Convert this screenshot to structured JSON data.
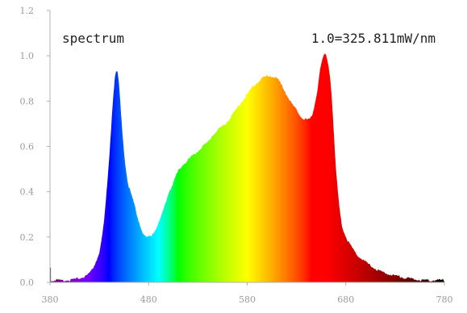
{
  "chart_data": {
    "type": "area",
    "title": "",
    "xlabel": "",
    "ylabel": "",
    "xlim": [
      380,
      780
    ],
    "ylim": [
      0,
      1.2
    ],
    "x_ticks": [
      380,
      480,
      580,
      680,
      780
    ],
    "y_ticks": [
      0.0,
      0.2,
      0.4,
      0.6,
      0.8,
      1.0,
      1.2
    ],
    "x_tick_labels": [
      "380",
      "480",
      "580",
      "680",
      "780"
    ],
    "y_tick_labels": [
      "0.0",
      "0.2",
      "0.4",
      "0.6",
      "0.8",
      "1.0",
      "1.2"
    ],
    "grid": false,
    "fill": "wavelength-rainbow",
    "annotations": {
      "left": "spectrum",
      "right": "1.0=325.811mW/nm"
    },
    "series": [
      {
        "x": [
          380,
          390,
          400,
          410,
          420,
          430,
          435,
          440,
          445,
          448,
          450,
          452,
          455,
          458,
          460,
          465,
          470,
          475,
          480,
          485,
          490,
          495,
          500,
          505,
          510,
          515,
          520,
          525,
          530,
          535,
          540,
          545,
          550,
          555,
          560,
          565,
          570,
          575,
          580,
          585,
          590,
          595,
          600,
          605,
          610,
          615,
          620,
          625,
          630,
          635,
          640,
          645,
          650,
          655,
          660,
          665,
          670,
          675,
          680,
          690,
          700,
          710,
          720,
          740,
          760,
          780
        ],
        "values": [
          0.01,
          0.01,
          0.01,
          0.02,
          0.04,
          0.13,
          0.28,
          0.55,
          0.86,
          0.93,
          0.87,
          0.74,
          0.58,
          0.47,
          0.42,
          0.35,
          0.27,
          0.21,
          0.2,
          0.22,
          0.26,
          0.32,
          0.39,
          0.44,
          0.49,
          0.52,
          0.54,
          0.56,
          0.58,
          0.6,
          0.62,
          0.65,
          0.67,
          0.69,
          0.71,
          0.74,
          0.77,
          0.8,
          0.83,
          0.86,
          0.88,
          0.9,
          0.91,
          0.91,
          0.9,
          0.87,
          0.83,
          0.79,
          0.76,
          0.73,
          0.72,
          0.73,
          0.82,
          0.96,
          1.0,
          0.86,
          0.5,
          0.28,
          0.2,
          0.13,
          0.09,
          0.06,
          0.04,
          0.02,
          0.01,
          0.01
        ]
      }
    ]
  }
}
